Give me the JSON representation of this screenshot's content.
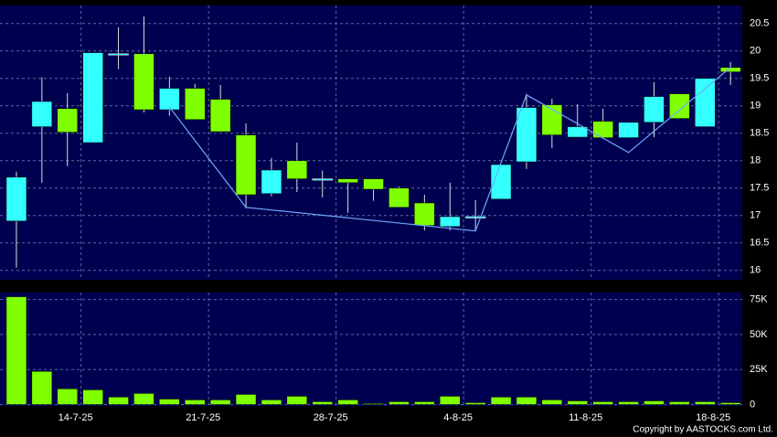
{
  "chart_data": [
    {
      "type": "candlestick",
      "open": [
        16.9,
        18.62,
        18.95,
        18.33,
        19.95,
        19.95,
        18.93,
        19.32,
        19.12,
        18.47,
        17.4,
        18.0,
        17.67,
        17.67,
        17.67,
        17.5,
        17.23,
        16.8,
        16.98,
        17.3,
        17.98,
        19.02,
        18.43,
        18.72,
        18.42,
        18.7,
        19.22,
        18.62,
        19.7
      ],
      "high": [
        17.8,
        19.52,
        19.23,
        19.97,
        20.43,
        20.63,
        19.53,
        19.4,
        19.38,
        18.68,
        18.05,
        18.33,
        17.82,
        17.67,
        17.67,
        17.53,
        17.38,
        17.6,
        17.28,
        17.93,
        19.22,
        19.13,
        19.03,
        18.95,
        18.7,
        19.43,
        19.22,
        19.5,
        19.8
      ],
      "low": [
        16.05,
        17.6,
        17.9,
        18.33,
        19.67,
        18.88,
        18.82,
        18.75,
        18.53,
        17.13,
        17.35,
        17.43,
        17.33,
        17.05,
        17.27,
        17.15,
        16.73,
        16.73,
        16.72,
        17.3,
        17.85,
        18.23,
        18.43,
        18.4,
        18.42,
        18.43,
        18.77,
        18.62,
        19.38
      ],
      "close": [
        17.7,
        19.08,
        18.52,
        19.97,
        19.95,
        18.93,
        19.32,
        18.75,
        18.53,
        17.38,
        17.83,
        17.67,
        17.67,
        17.6,
        17.48,
        17.15,
        16.82,
        16.98,
        16.98,
        17.93,
        18.97,
        18.47,
        18.62,
        18.42,
        18.7,
        19.17,
        18.77,
        19.5,
        19.62
      ],
      "up_color": "#33ffff",
      "down_color": "#80ff00",
      "overlay": {
        "color": "#6fa8ff",
        "values": [
          null,
          null,
          null,
          null,
          null,
          null,
          18.98,
          null,
          null,
          17.15,
          null,
          null,
          null,
          null,
          null,
          null,
          null,
          null,
          16.72,
          null,
          19.2,
          null,
          null,
          null,
          18.15,
          null,
          null,
          null,
          19.7
        ]
      },
      "ylim": [
        15.83,
        20.83
      ],
      "yticks": [
        16,
        16.5,
        17,
        17.5,
        18,
        18.5,
        19,
        19.5,
        20,
        20.5
      ],
      "grid": true
    },
    {
      "type": "bar",
      "categories": [
        null,
        null,
        null,
        "14-7-25",
        null,
        null,
        null,
        null,
        "21-7-25",
        null,
        null,
        null,
        null,
        "28-7-25",
        null,
        null,
        null,
        null,
        "4-8-25",
        null,
        null,
        null,
        null,
        "11-8-25",
        null,
        null,
        null,
        null,
        "18-8-25"
      ],
      "values": [
        77000,
        23700,
        11200,
        10500,
        5300,
        7900,
        3900,
        3300,
        3300,
        7200,
        3300,
        5900,
        2000,
        3300,
        700,
        2000,
        2000,
        5900,
        1300,
        5300,
        5300,
        3300,
        2600,
        2000,
        2000,
        2600,
        2000,
        2000,
        1300
      ],
      "color": "#80ff00",
      "ylim": [
        -1000,
        80000
      ],
      "yticks": [
        0,
        {
          "value": 25000,
          "label": "25K"
        },
        {
          "value": 50000,
          "label": "50K"
        },
        {
          "value": 75000,
          "label": "75K"
        }
      ],
      "grid": true
    }
  ],
  "copyright": "Copyright by AASTOCKS.com Ltd."
}
